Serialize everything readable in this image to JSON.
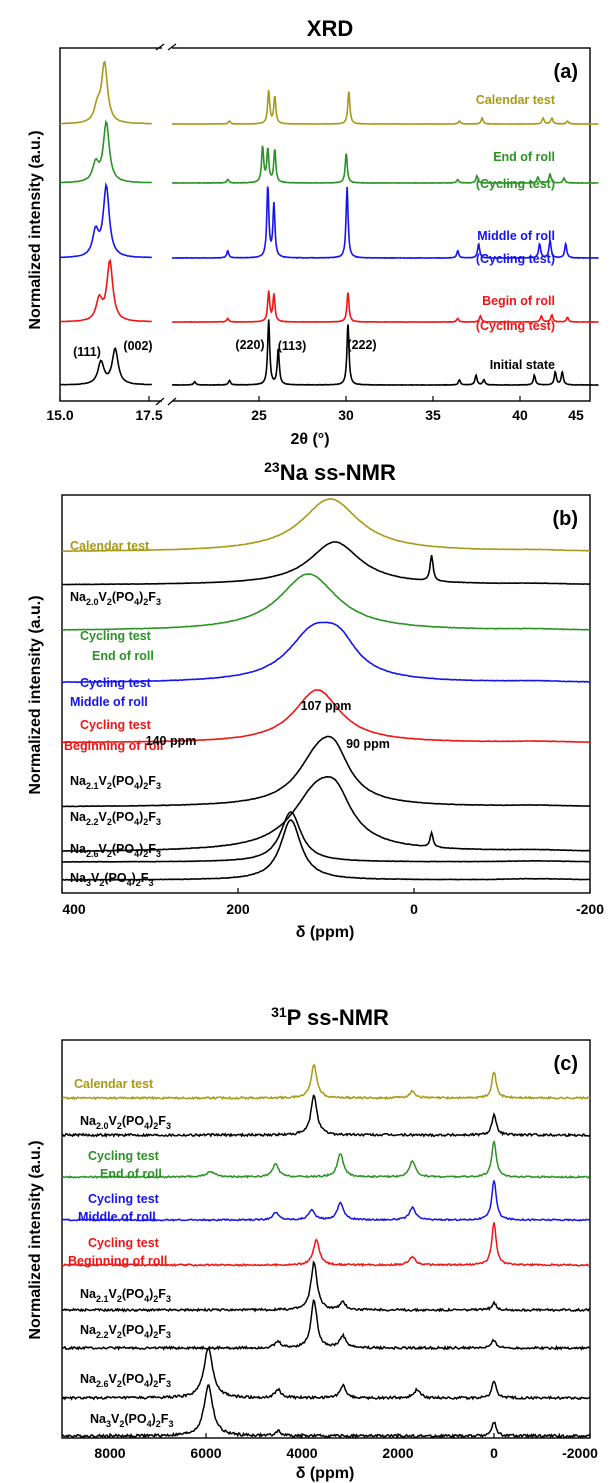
{
  "colors": {
    "olive": "#a89a18",
    "green": "#2a9324",
    "blue": "#1414ee",
    "red": "#f01414",
    "black": "#000000"
  },
  "chart_data": [
    {
      "type": "line",
      "panel_label": "(a)",
      "title": "XRD",
      "xlabel": "2θ (°)",
      "ylabel": "Normalized intensity (a.u.)",
      "x_break": "17.5 to 22.5 (axis break)",
      "xticks": [
        "15.0",
        "17.5",
        "25",
        "30",
        "35",
        "40",
        "45"
      ],
      "series": [
        {
          "name": "Calendar test",
          "color": "olive",
          "peaks": [
            [
              16.25,
              1.0
            ],
            [
              16.05,
              0.25
            ],
            [
              25.8,
              0.05
            ],
            [
              28.05,
              0.55
            ],
            [
              28.4,
              0.45
            ],
            [
              32.65,
              0.55
            ],
            [
              39.0,
              0.05
            ],
            [
              40.3,
              0.1
            ],
            [
              43.8,
              0.1
            ],
            [
              44.3,
              0.1
            ],
            [
              45.2,
              0.05
            ]
          ]
        },
        {
          "name": "End of roll (Cycling test)",
          "color": "green",
          "peaks": [
            [
              16.3,
              1.0
            ],
            [
              16.0,
              0.3
            ],
            [
              25.7,
              0.06
            ],
            [
              27.7,
              0.6
            ],
            [
              28.0,
              0.55
            ],
            [
              28.4,
              0.55
            ],
            [
              32.5,
              0.5
            ],
            [
              38.9,
              0.06
            ],
            [
              40.0,
              0.12
            ],
            [
              43.5,
              0.1
            ],
            [
              44.2,
              0.15
            ],
            [
              45.0,
              0.08
            ]
          ]
        },
        {
          "name": "Middle of roll (Cycling test)",
          "color": "blue",
          "peaks": [
            [
              16.3,
              1.0
            ],
            [
              16.0,
              0.35
            ],
            [
              25.7,
              0.1
            ],
            [
              28.0,
              1.0
            ],
            [
              28.35,
              0.75
            ],
            [
              32.55,
              1.0
            ],
            [
              38.9,
              0.1
            ],
            [
              40.1,
              0.2
            ],
            [
              43.6,
              0.2
            ],
            [
              44.2,
              0.25
            ],
            [
              45.1,
              0.2
            ]
          ]
        },
        {
          "name": "Begin of roll (Cycling test)",
          "color": "red",
          "peaks": [
            [
              16.4,
              1.0
            ],
            [
              16.1,
              0.35
            ],
            [
              25.7,
              0.06
            ],
            [
              28.05,
              0.5
            ],
            [
              28.35,
              0.45
            ],
            [
              32.6,
              0.5
            ],
            [
              38.9,
              0.06
            ],
            [
              40.2,
              0.1
            ],
            [
              43.7,
              0.1
            ],
            [
              44.3,
              0.12
            ],
            [
              45.2,
              0.08
            ]
          ]
        },
        {
          "name": "Initial state",
          "color": "black",
          "peaks": [
            [
              16.15,
              0.35
            ],
            [
              16.55,
              0.55
            ],
            [
              23.8,
              0.05
            ],
            [
              25.8,
              0.07
            ],
            [
              28.05,
              1.0
            ],
            [
              28.6,
              0.55
            ],
            [
              32.6,
              0.95
            ],
            [
              39.0,
              0.08
            ],
            [
              39.95,
              0.15
            ],
            [
              40.4,
              0.08
            ],
            [
              43.3,
              0.15
            ],
            [
              44.5,
              0.2
            ],
            [
              44.9,
              0.2
            ]
          ]
        }
      ],
      "annotations": [
        "(111)",
        "(002)",
        "(220)",
        "(113)",
        "(222)"
      ]
    },
    {
      "type": "line",
      "panel_label": "(b)",
      "title": "23Na ss-NMR",
      "title_sup": "23",
      "title_main": "Na ss-NMR",
      "xlabel": "δ (ppm)",
      "ylabel": "Normalized intensity (a.u.)",
      "xlim": [
        400,
        -200
      ],
      "xticks": [
        "400",
        "200",
        "0",
        "-200"
      ],
      "series": [
        {
          "name": "Calendar test",
          "color": "olive",
          "peaks": [
            [
              95,
              1.0,
              40
            ]
          ]
        },
        {
          "name": "Na2.0V2(PO4)2F3",
          "color": "black",
          "peaks": [
            [
              90,
              1.0,
              35
            ],
            [
              -20,
              0.6,
              2
            ]
          ]
        },
        {
          "name": "Cycling test End of roll",
          "color": "green",
          "peaks": [
            [
              120,
              1.0,
              40
            ]
          ]
        },
        {
          "name": "Cycling test Middle of roll",
          "color": "blue",
          "peaks": [
            [
              115,
              0.8,
              35
            ],
            [
              85,
              0.5,
              25
            ]
          ]
        },
        {
          "name": "Cycling test Beginning of roll",
          "color": "red",
          "peaks": [
            [
              110,
              1.0,
              32
            ]
          ]
        },
        {
          "name": "Na2.1V2(PO4)2F3",
          "color": "black",
          "peaks": [
            [
              108,
              0.9,
              30
            ],
            [
              90,
              0.6,
              20
            ]
          ]
        },
        {
          "name": "Na2.2V2(PO4)2F3",
          "color": "black",
          "peaks": [
            [
              110,
              1.0,
              35
            ],
            [
              88,
              0.5,
              20
            ],
            [
              -20,
              0.25,
              2
            ]
          ]
        },
        {
          "name": "Na2.6V2(PO4)2F3",
          "color": "black",
          "peaks": [
            [
              140,
              1.0,
              14
            ]
          ]
        },
        {
          "name": "Na3V2(PO4)2F3",
          "color": "black",
          "peaks": [
            [
              140,
              1.0,
              14
            ]
          ]
        }
      ],
      "annotations": [
        "107 ppm",
        "140 ppm",
        "90 ppm"
      ]
    },
    {
      "type": "line",
      "panel_label": "(c)",
      "title": "31P ss-NMR",
      "title_sup": "31",
      "title_main": "P ss-NMR",
      "xlabel": "δ (ppm)",
      "ylabel": "Normalized intensity (a.u.)",
      "xlim": [
        9000,
        -2000
      ],
      "xticks": [
        "8000",
        "6000",
        "4000",
        "2000",
        "0",
        "-2000"
      ],
      "series": [
        {
          "name": "Calendar test",
          "color": "olive",
          "peaks": [
            [
              3750,
              1.0
            ],
            [
              1700,
              0.2
            ],
            [
              0,
              0.8
            ]
          ]
        },
        {
          "name": "Na2.0V2(PO4)2F3",
          "color": "black",
          "peaks": [
            [
              3750,
              1.0
            ],
            [
              0,
              0.5
            ]
          ]
        },
        {
          "name": "Cycling test End of roll",
          "color": "green",
          "peaks": [
            [
              5900,
              0.2
            ],
            [
              4550,
              0.5
            ],
            [
              3200,
              0.9
            ],
            [
              1700,
              0.6
            ],
            [
              0,
              1.4
            ]
          ]
        },
        {
          "name": "Cycling test Middle of roll",
          "color": "blue",
          "peaks": [
            [
              4550,
              0.3
            ],
            [
              3800,
              0.4
            ],
            [
              3200,
              0.7
            ],
            [
              1700,
              0.5
            ],
            [
              0,
              1.6
            ]
          ]
        },
        {
          "name": "Cycling test Beginning of roll",
          "color": "red",
          "peaks": [
            [
              3700,
              0.9
            ],
            [
              1700,
              0.3
            ],
            [
              0,
              1.5
            ]
          ]
        },
        {
          "name": "Na2.1V2(PO4)2F3",
          "color": "black",
          "peaks": [
            [
              3750,
              1.3
            ],
            [
              3150,
              0.2
            ],
            [
              0,
              0.2
            ]
          ]
        },
        {
          "name": "Na2.2V2(PO4)2F3",
          "color": "black",
          "peaks": [
            [
              4500,
              0.15
            ],
            [
              3750,
              1.2
            ],
            [
              3150,
              0.3
            ],
            [
              0,
              0.2
            ]
          ]
        },
        {
          "name": "Na2.6V2(PO4)2F3",
          "color": "black",
          "peaks": [
            [
              5950,
              1.2
            ],
            [
              4500,
              0.2
            ],
            [
              3150,
              0.3
            ],
            [
              1600,
              0.2
            ],
            [
              0,
              0.4
            ]
          ]
        },
        {
          "name": "Na3V2(PO4)2F3",
          "color": "black",
          "peaks": [
            [
              5950,
              1.1
            ],
            [
              4500,
              0.1
            ],
            [
              0,
              0.3
            ]
          ]
        }
      ]
    }
  ]
}
